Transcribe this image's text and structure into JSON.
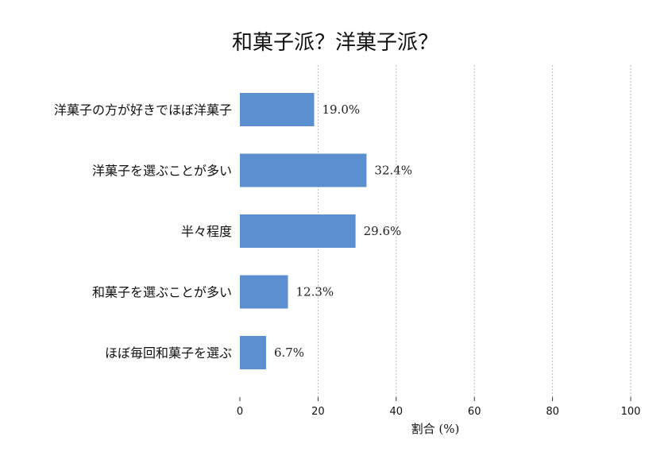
{
  "chart_data": {
    "type": "bar",
    "orientation": "horizontal",
    "title": "和菓子派？洋菓子派？",
    "xlabel": "割合 (%)",
    "ylabel": "",
    "xlim": [
      0,
      100
    ],
    "xticks": [
      0,
      20,
      40,
      60,
      80,
      100
    ],
    "grid": "vertical-dashed",
    "bar_color": "#5b8fd0",
    "categories": [
      "洋菓子の方が好きでほぼ洋菓子",
      "洋菓子を選ぶことが多い",
      "半々程度",
      "和菓子を選ぶことが多い",
      "ほぼ毎回和菓子を選ぶ"
    ],
    "values": [
      19.0,
      32.4,
      29.6,
      12.3,
      6.7
    ],
    "value_labels": [
      "19.0%",
      "32.4%",
      "29.6%",
      "12.3%",
      "6.7%"
    ]
  }
}
